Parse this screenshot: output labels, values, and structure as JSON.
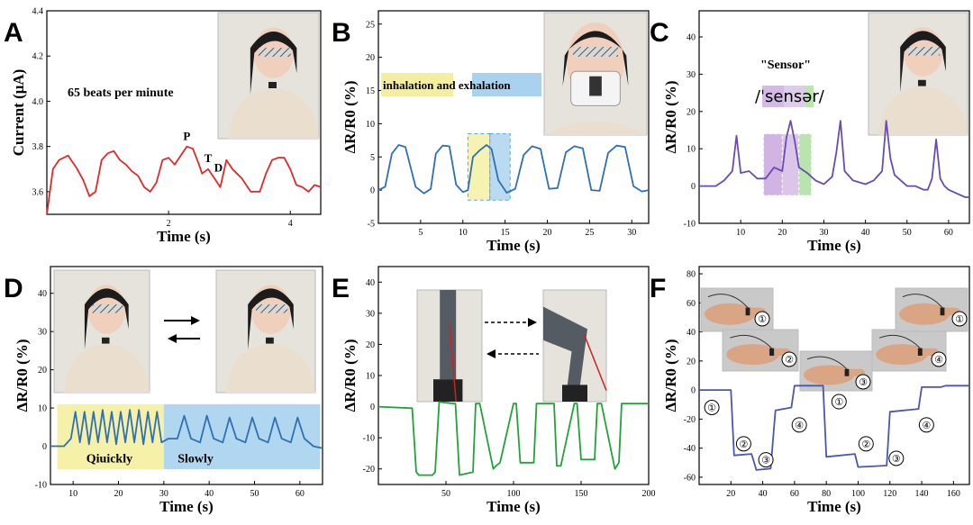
{
  "colors": {
    "A": "#dd2a2a",
    "B": "#2f6fb3",
    "C": "#6a4cb0",
    "D": "#2f6fb3",
    "E": "#22a33a",
    "F": "#4a56b2",
    "yellow": "#f4efa0",
    "blue": "#a9d2ee",
    "purple": "#c9a8e0",
    "green": "#b2e2a6"
  },
  "photos": {
    "A": "photo-woman-side-with-neck-sensor",
    "B": "photo-woman-with-mask-sensor",
    "C": "photo-woman-with-throat-sensor",
    "D": [
      "photo-head-front",
      "photo-head-turned"
    ],
    "E": [
      "photo-leg-straight",
      "photo-leg-bent"
    ],
    "F": [
      "photo-finger-1",
      "photo-finger-2",
      "photo-finger-3",
      "photo-finger-4",
      "photo-finger-1b"
    ]
  },
  "chart_data": [
    {
      "panel": "A",
      "type": "line",
      "title": "",
      "xlabel": "Time (s)",
      "ylabel": "Current (μA)",
      "xlim": [
        0,
        4.5
      ],
      "ylim": [
        3.5,
        4.4
      ],
      "xticks": [
        2,
        4
      ],
      "yticks": [
        3.6,
        3.8,
        4.0,
        4.2,
        4.4
      ],
      "ytick_labels": [
        "3.6",
        "3.8",
        "4.0",
        "4.2",
        "4.4"
      ],
      "annotations": [
        "65 beats per minute",
        "P",
        "T",
        "D"
      ],
      "series": [
        {
          "x": [
            0.0,
            0.1,
            0.2,
            0.35,
            0.5,
            0.6,
            0.7,
            0.8,
            0.9,
            1.0,
            1.1,
            1.2,
            1.3,
            1.4,
            1.5,
            1.6,
            1.7,
            1.8,
            1.9,
            2.0,
            2.1,
            2.2,
            2.3,
            2.4,
            2.5,
            2.55,
            2.65,
            2.75,
            2.85,
            2.95,
            3.05,
            3.2,
            3.35,
            3.5,
            3.6,
            3.7,
            3.8,
            3.9,
            4.0,
            4.1,
            4.2,
            4.3,
            4.4,
            4.5
          ],
          "y": [
            3.5,
            3.7,
            3.74,
            3.76,
            3.7,
            3.65,
            3.58,
            3.6,
            3.74,
            3.77,
            3.78,
            3.74,
            3.72,
            3.69,
            3.67,
            3.62,
            3.6,
            3.64,
            3.74,
            3.75,
            3.72,
            3.76,
            3.8,
            3.79,
            3.72,
            3.68,
            3.7,
            3.66,
            3.62,
            3.74,
            3.7,
            3.66,
            3.6,
            3.6,
            3.68,
            3.74,
            3.75,
            3.75,
            3.7,
            3.63,
            3.62,
            3.6,
            3.63,
            3.62
          ]
        }
      ]
    },
    {
      "panel": "B",
      "type": "line",
      "title": "",
      "xlabel": "Time (s)",
      "ylabel": "ΔR/R0 (%)",
      "xlim": [
        0,
        32
      ],
      "ylim": [
        -5,
        27
      ],
      "xticks": [
        5,
        10,
        15,
        20,
        25,
        30
      ],
      "yticks": [
        -5,
        0,
        5,
        10,
        15,
        20,
        25
      ],
      "bands": [
        {
          "text": "inhalation",
          "color": "yellow"
        },
        {
          "text": "and exhalation",
          "color": "blue"
        }
      ],
      "series": [
        {
          "x": [
            0,
            0.8,
            1.6,
            2.4,
            3.2,
            4.4,
            5.4,
            6.2,
            6.8,
            7.6,
            8.4,
            9.2,
            10.0,
            10.6,
            11.2,
            12.0,
            12.8,
            13.4,
            14.2,
            15.2,
            16.2,
            17.2,
            18.2,
            19.2,
            20.2,
            21.2,
            22.2,
            23.2,
            24.2,
            25.2,
            26.2,
            27.2,
            28.2,
            29.2,
            30.2,
            31.2,
            32
          ],
          "y": [
            0,
            0.5,
            5.5,
            6.8,
            6.5,
            0.5,
            -0.5,
            0.2,
            5.5,
            6.7,
            6.6,
            0.8,
            -0.3,
            0.0,
            5.0,
            6.0,
            6.8,
            6.2,
            1.5,
            -0.4,
            0.2,
            5.3,
            6.6,
            6.2,
            0.2,
            0.3,
            5.7,
            6.6,
            6.3,
            0.0,
            -0.1,
            5.6,
            6.7,
            6.5,
            0.6,
            -0.2,
            0.0
          ]
        }
      ]
    },
    {
      "panel": "C",
      "type": "line",
      "title": "",
      "xlabel": "Time (s)",
      "ylabel": "ΔR/R0 (%)",
      "xlim": [
        0,
        65
      ],
      "ylim": [
        -10,
        47
      ],
      "xticks": [
        10,
        20,
        30,
        40,
        50,
        60
      ],
      "yticks": [
        -10,
        0,
        10,
        20,
        30,
        40
      ],
      "annotations": [
        "\"Sensor\"",
        "/ˈsensər/"
      ],
      "series": [
        {
          "x": [
            0,
            4,
            6,
            8,
            9,
            10,
            12,
            14,
            16,
            18,
            20,
            21,
            22,
            23,
            24,
            26,
            28,
            30,
            32,
            33,
            34,
            35,
            37,
            40,
            42,
            44,
            45,
            46,
            47,
            48,
            50,
            52,
            54,
            55,
            56,
            57,
            58,
            59,
            60,
            62,
            64,
            65
          ],
          "y": [
            0,
            0,
            1.5,
            4,
            13.5,
            3.5,
            4,
            2,
            2,
            5,
            4,
            13,
            17.5,
            12,
            5,
            3.5,
            1.5,
            0.5,
            2.5,
            9,
            17.5,
            4,
            1.5,
            0.5,
            1.5,
            4,
            17.5,
            7.5,
            3,
            2,
            0,
            0,
            -1,
            -1,
            2,
            12.5,
            2,
            0,
            -1,
            -2,
            -3,
            -3
          ]
        }
      ]
    },
    {
      "panel": "D",
      "type": "line",
      "title": "",
      "xlabel": "Time (s)",
      "ylabel": "ΔR/R0 (%)",
      "xlim": [
        5,
        65
      ],
      "ylim": [
        -10,
        47
      ],
      "xticks": [
        10,
        20,
        30,
        40,
        50,
        60
      ],
      "yticks": [
        -10,
        0,
        10,
        20,
        30,
        40
      ],
      "bands": [
        {
          "text": "Qiuickly",
          "color": "yellow"
        },
        {
          "text": "Slowly",
          "color": "blue"
        }
      ],
      "series": [
        {
          "x": [
            5,
            8,
            9.5,
            10.5,
            11.5,
            12.5,
            13.5,
            14.5,
            15.5,
            16.5,
            17.5,
            18.5,
            19.5,
            20.5,
            21.5,
            22.5,
            23.5,
            24.5,
            25.5,
            26.5,
            27.5,
            28.5,
            29.5,
            31,
            33,
            34.5,
            36,
            38,
            39.5,
            41,
            43,
            44.5,
            46,
            48,
            49.5,
            51,
            53,
            54.5,
            56,
            58,
            59.5,
            61,
            63,
            65
          ],
          "y": [
            0,
            0,
            2,
            9,
            1,
            9,
            0.5,
            9,
            1,
            9.5,
            1,
            9,
            0.5,
            9,
            1,
            9.5,
            1,
            9.5,
            0.5,
            9,
            1,
            9,
            1,
            2,
            2,
            8,
            2,
            1,
            8,
            2,
            1,
            7.5,
            2,
            1,
            7.5,
            2,
            1,
            7.5,
            2,
            1,
            7.5,
            2,
            0,
            -0.5
          ]
        }
      ]
    },
    {
      "panel": "E",
      "type": "line",
      "title": "",
      "xlabel": "Time (s)",
      "ylabel": "ΔR/R0 (%)",
      "xlim": [
        0,
        200
      ],
      "ylim": [
        -25,
        45
      ],
      "xticks": [
        50,
        100,
        150,
        200
      ],
      "yticks": [
        -20,
        -10,
        0,
        10,
        20,
        30,
        40
      ],
      "series": [
        {
          "x": [
            0,
            25,
            28,
            30,
            40,
            42,
            45,
            55,
            57,
            60,
            70,
            72,
            75,
            85,
            87,
            90,
            100,
            102,
            105,
            115,
            117,
            120,
            130,
            132,
            135,
            145,
            147,
            150,
            160,
            162,
            165,
            175,
            178,
            180,
            200
          ],
          "y": [
            0,
            -0.5,
            -21,
            -22,
            -22,
            -21,
            1.5,
            1,
            1,
            -22,
            -21,
            1,
            1,
            -20,
            -19,
            -18,
            1,
            1,
            -18,
            -18,
            1,
            1,
            1,
            -19,
            -19,
            1,
            1,
            -17,
            -17,
            1,
            1,
            -20,
            -18,
            1,
            1
          ]
        }
      ]
    },
    {
      "panel": "F",
      "type": "line",
      "title": "",
      "xlabel": "Time (s)",
      "ylabel": "ΔR/R0 (%)",
      "xlim": [
        0,
        170
      ],
      "ylim": [
        -65,
        85
      ],
      "xticks": [
        20,
        40,
        60,
        80,
        100,
        120,
        140,
        160
      ],
      "yticks": [
        -60,
        -40,
        -20,
        0,
        20,
        40,
        60,
        80
      ],
      "annotations": [
        "①",
        "②",
        "③",
        "④",
        "①",
        "②",
        "③",
        "④",
        "①",
        "②",
        "③",
        "④",
        "①"
      ],
      "series": [
        {
          "x": [
            0,
            20,
            22,
            33,
            36,
            45,
            48,
            58,
            60,
            78,
            80,
            98,
            100,
            118,
            120,
            138,
            140,
            152,
            155,
            170
          ],
          "y": [
            0,
            0,
            -45,
            -44,
            -55,
            -54,
            -14,
            -12,
            3,
            3,
            -46,
            -44,
            -53,
            -52,
            -15,
            -13,
            2,
            2,
            3,
            3
          ]
        }
      ]
    }
  ]
}
